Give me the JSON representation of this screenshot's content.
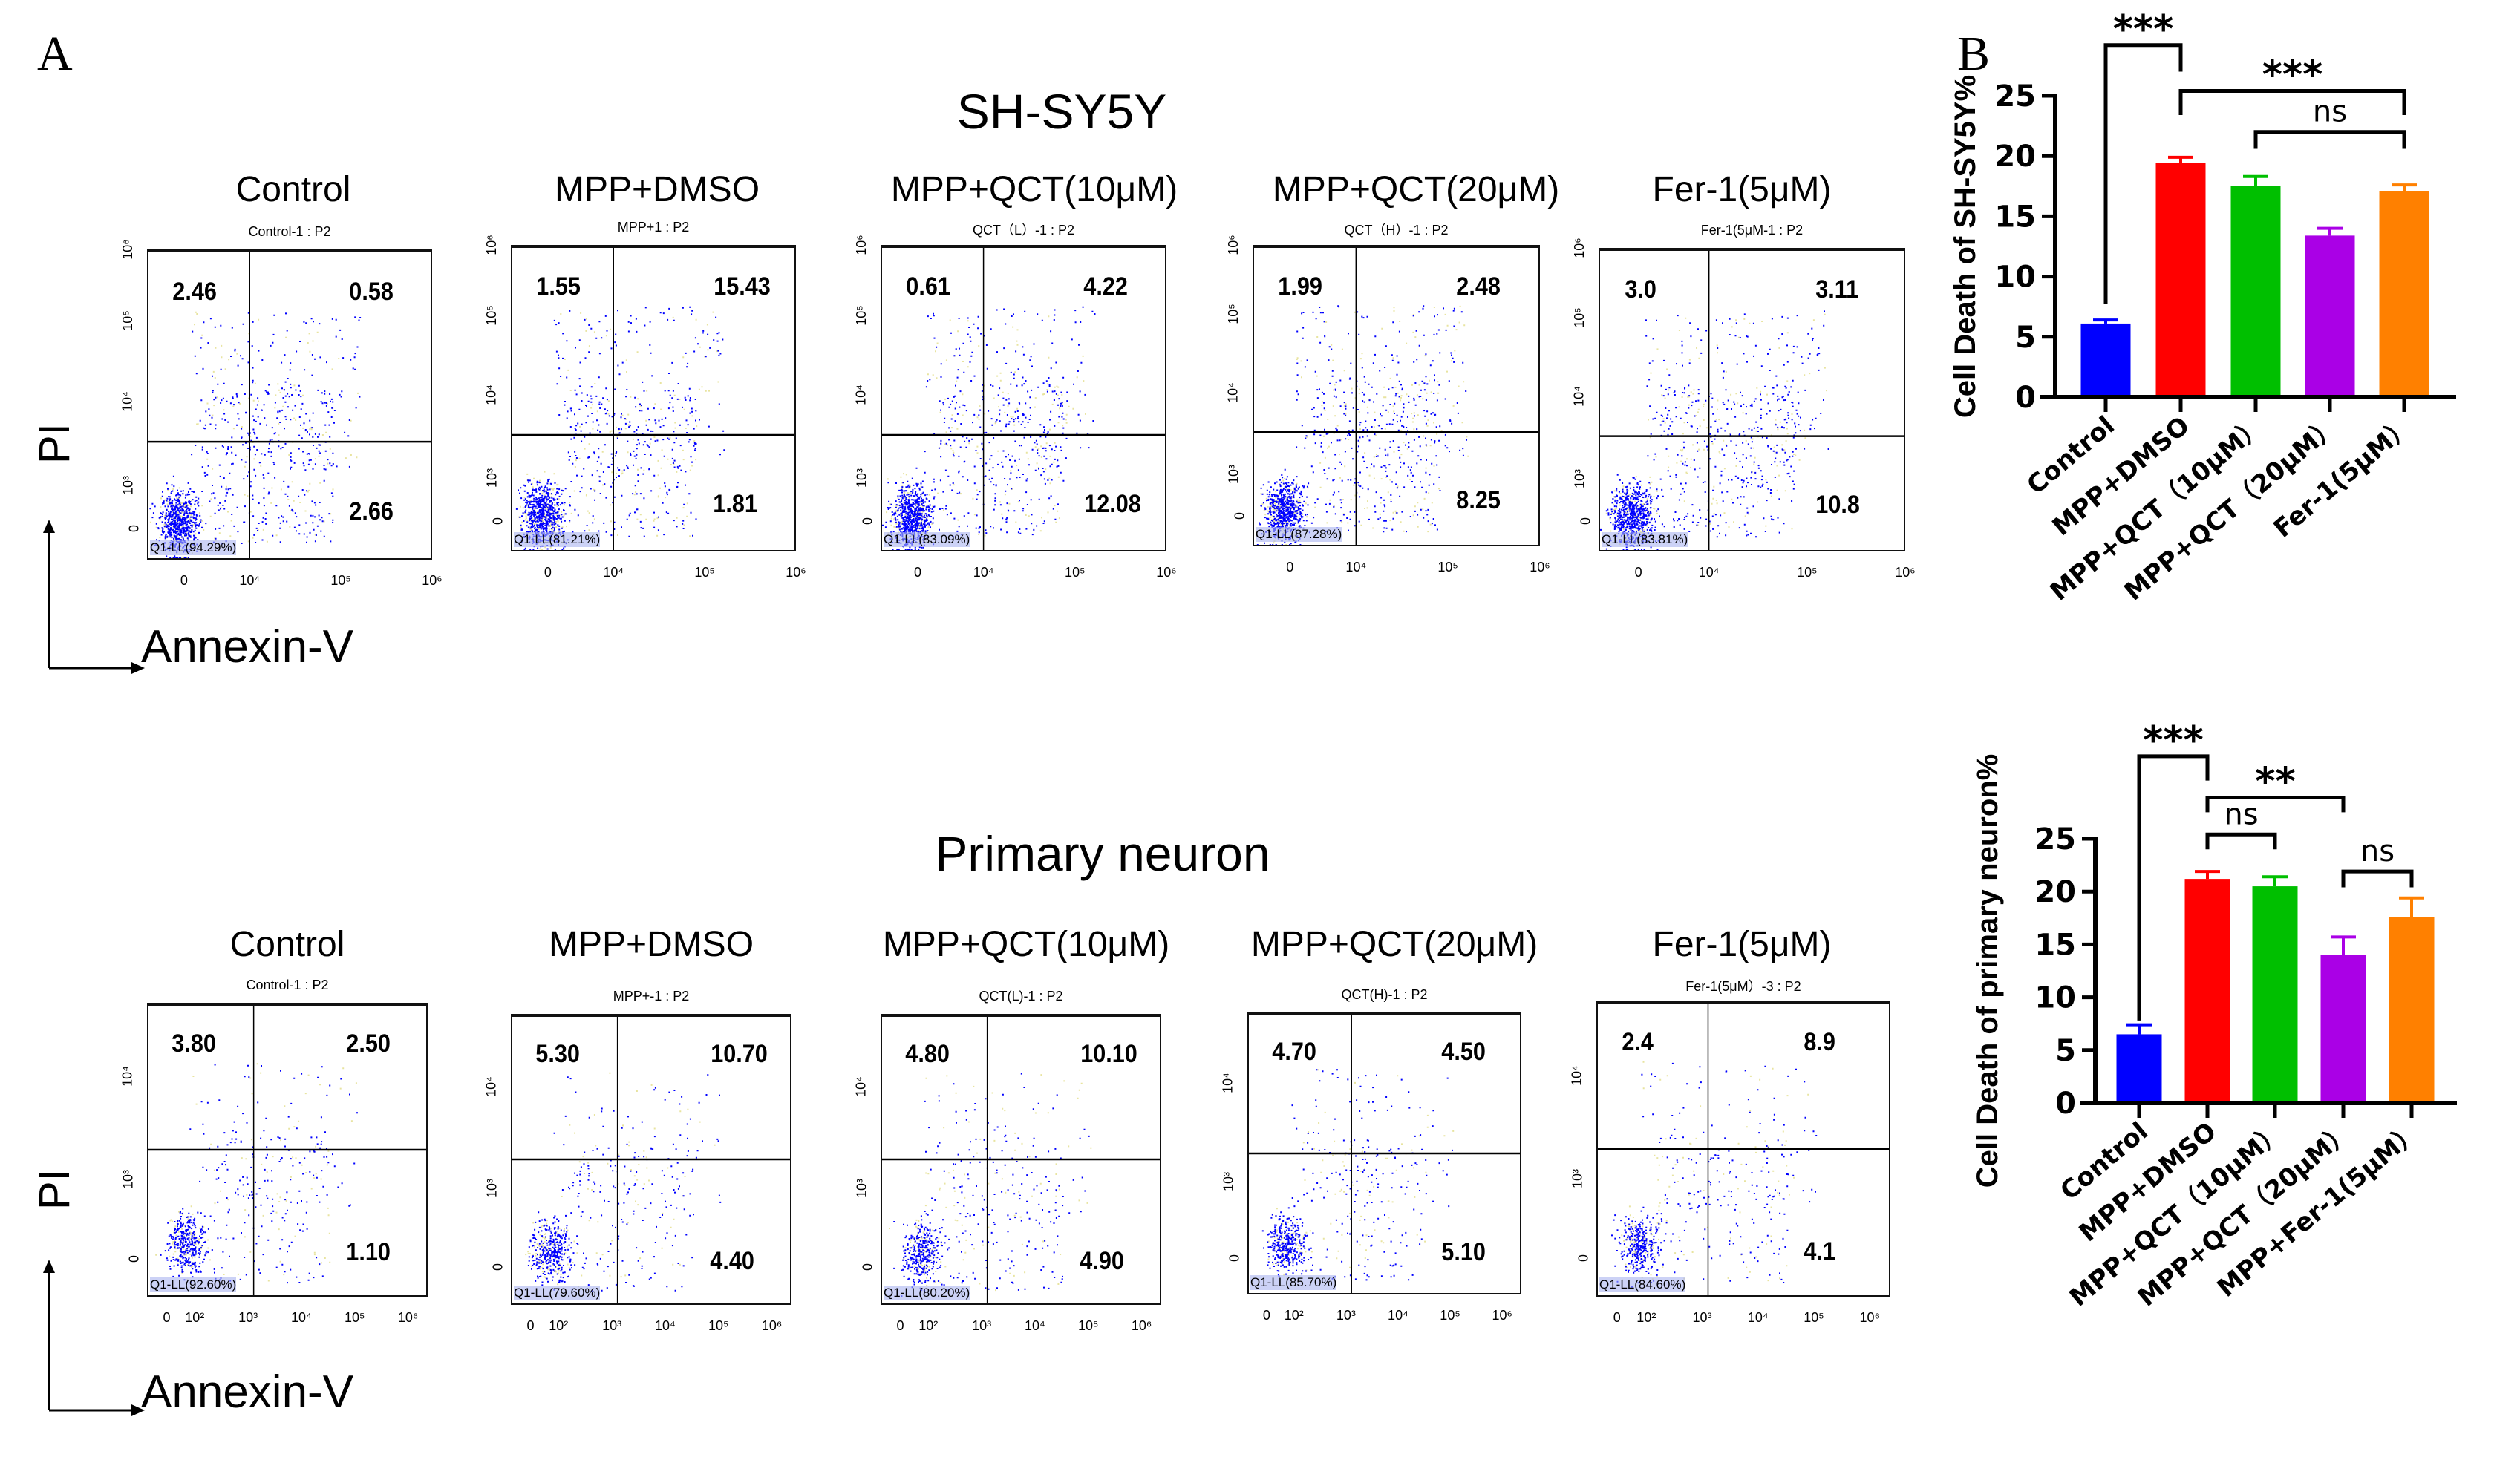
{
  "panel_labels": {
    "a": "A",
    "b": "B"
  },
  "row1": {
    "title": "SH-SY5Y",
    "y_axis_label": "PI",
    "x_axis_label": "Annexin-V",
    "x_ticks": [
      "0",
      "10⁴",
      "10⁵",
      "10⁶"
    ],
    "y_ticks": [
      "0",
      "10³",
      "10⁴",
      "10⁵",
      "10⁶"
    ],
    "plots": [
      {
        "label": "Control",
        "title": "Control-1 : P2",
        "ul": "2.46",
        "ur": "0.58",
        "lr": "2.66",
        "ll": "Q1-LL(94.29%)"
      },
      {
        "label": "MPP+DMSO",
        "title": "MPP+1 : P2",
        "ul": "1.55",
        "ur": "15.43",
        "lr": "1.81",
        "ll": "Q1-LL(81.21%)"
      },
      {
        "label": "MPP+QCT(10μM)",
        "title": "QCT（L）-1 : P2",
        "ul": "0.61",
        "ur": "4.22",
        "lr": "12.08",
        "ll": "Q1-LL(83.09%)"
      },
      {
        "label": "MPP+QCT(20μM)",
        "title": "QCT（H）-1 : P2",
        "ul": "1.99",
        "ur": "2.48",
        "lr": "8.25",
        "ll": "Q1-LL(87.28%)"
      },
      {
        "label": "Fer-1(5μM)",
        "title": "Fer-1(5μM-1 : P2",
        "ul": "3.0",
        "ur": "3.11",
        "lr": "10.8",
        "ll": "Q1-LL(83.81%)"
      }
    ]
  },
  "row2": {
    "title": "Primary neuron",
    "y_axis_label": "PI",
    "x_axis_label": "Annexin-V",
    "x_ticks": [
      "0",
      "10²",
      "10³",
      "10⁴",
      "10⁵",
      "10⁶"
    ],
    "y_ticks": [
      "0",
      "10³",
      "10⁴"
    ],
    "plots": [
      {
        "label": "Control",
        "title": "Control-1 : P2",
        "ul": "3.80",
        "ur": "2.50",
        "lr": "1.10",
        "ll": "Q1-LL(92.60%)"
      },
      {
        "label": "MPP+DMSO",
        "title": "MPP+-1 : P2",
        "ul": "5.30",
        "ur": "10.70",
        "lr": "4.40",
        "ll": "Q1-LL(79.60%)"
      },
      {
        "label": "MPP+QCT(10μM)",
        "title": "QCT(L)-1 : P2",
        "ul": "4.80",
        "ur": "10.10",
        "lr": "4.90",
        "ll": "Q1-LL(80.20%)"
      },
      {
        "label": "MPP+QCT(20μM)",
        "title": "QCT(H)-1 : P2",
        "ul": "4.70",
        "ur": "4.50",
        "lr": "5.10",
        "ll": "Q1-LL(85.70%)"
      },
      {
        "label": "Fer-1(5μM)",
        "title": "Fer-1(5μM）-3 : P2",
        "ul": "2.4",
        "ur": "8.9",
        "lr": "4.1",
        "ll": "Q1-LL(84.60%)"
      }
    ]
  },
  "chart_data": [
    {
      "type": "bar",
      "ylabel": "Cell Death of SH-SY5Y%",
      "categories": [
        "Control",
        "MPP+DMSO",
        "MPP+QCT（10μM）",
        "MPP+QCT（20μM）",
        "Fer-1(5μM）"
      ],
      "values": [
        6.1,
        19.4,
        17.5,
        13.4,
        17.1
      ],
      "error_upper": [
        6.4,
        19.9,
        18.3,
        14.0,
        17.6
      ],
      "colors": [
        "#0000ff",
        "#ff0000",
        "#00bf00",
        "#aa00e6",
        "#ff8000"
      ],
      "ylim": [
        0,
        25
      ],
      "y_ticks": [
        "0",
        "5",
        "10",
        "15",
        "20",
        "25"
      ],
      "grid": false,
      "significance": [
        {
          "from": 0,
          "to": 1,
          "label": "***"
        },
        {
          "from": 1,
          "to": 4,
          "label": "***"
        },
        {
          "from": 2,
          "to": 4,
          "label": "ns"
        }
      ]
    },
    {
      "type": "bar",
      "ylabel": "Cell Death of primary neuron%",
      "categories": [
        "Control",
        "MPP+DMSO",
        "MPP+QCT（10μM）",
        "MPP+QCT（20μM）",
        "MPP+Fer-1(5μM）"
      ],
      "values": [
        6.5,
        21.2,
        20.5,
        14.0,
        17.6
      ],
      "error_upper": [
        7.4,
        21.9,
        21.4,
        15.7,
        19.4
      ],
      "colors": [
        "#0000ff",
        "#ff0000",
        "#00bf00",
        "#aa00e6",
        "#ff8000"
      ],
      "ylim": [
        0,
        25
      ],
      "y_ticks": [
        "0",
        "5",
        "10",
        "15",
        "20",
        "25"
      ],
      "grid": false,
      "significance": [
        {
          "from": 0,
          "to": 1,
          "label": "***"
        },
        {
          "from": 1,
          "to": 3,
          "label": "**"
        },
        {
          "from": 1,
          "to": 2,
          "label": "ns"
        },
        {
          "from": 3,
          "to": 4,
          "label": "ns"
        }
      ]
    }
  ]
}
